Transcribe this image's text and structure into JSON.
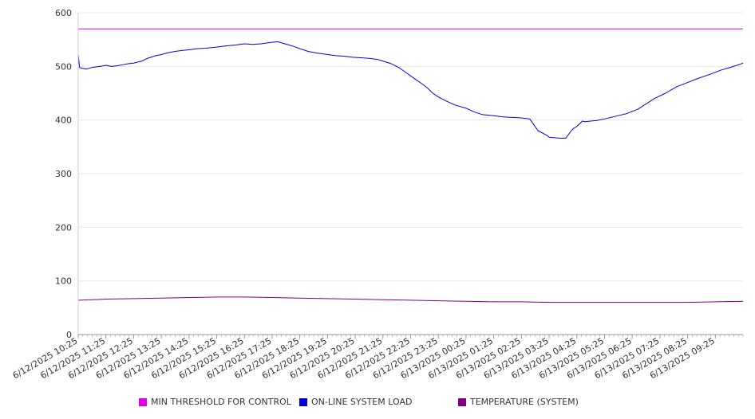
{
  "chart_data": {
    "type": "line",
    "ylim": [
      0,
      600
    ],
    "yticks": [
      0,
      100,
      200,
      300,
      400,
      500,
      600
    ],
    "xlabels": [
      "6/12/2025 10:25",
      "6/12/2025 11:25",
      "6/12/2025 12:25",
      "6/12/2025 13:25",
      "6/12/2025 14:25",
      "6/12/2025 15:25",
      "6/12/2025 16:25",
      "6/12/2025 17:25",
      "6/12/2025 18:25",
      "6/12/2025 19:25",
      "6/12/2025 20:25",
      "6/12/2025 21:25",
      "6/12/2025 22:25",
      "6/12/2025 23:25",
      "6/13/2025 00:25",
      "6/13/2025 01:25",
      "6/13/2025 02:25",
      "6/13/2025 03:25",
      "6/13/2025 04:25",
      "6/13/2025 05:25",
      "6/13/2025 06:25",
      "6/13/2025 07:25",
      "6/13/2025 08:25",
      "6/13/2025 09:25"
    ],
    "grid": true,
    "legend_position": "bottom",
    "series": [
      {
        "name": "MIN THRESHOLD FOR CONTROL",
        "color": "#e000e0",
        "x": [
          0,
          24
        ],
        "y": [
          570,
          570
        ]
      },
      {
        "name": "ON-LINE SYSTEM LOAD",
        "color": "#0000dd",
        "x": [
          0,
          0.05,
          0.1,
          0.3,
          0.5,
          0.8,
          1.0,
          1.2,
          1.4,
          1.5,
          1.6,
          1.8,
          2.0,
          2.3,
          2.5,
          2.8,
          3.0,
          3.2,
          3.5,
          3.8,
          4.0,
          4.3,
          4.6,
          5.0,
          5.3,
          5.7,
          6.0,
          6.3,
          6.6,
          7.0,
          7.2,
          7.4,
          7.6,
          7.8,
          8.0,
          8.3,
          8.6,
          9.0,
          9.3,
          9.6,
          9.9,
          10.2,
          10.5,
          10.8,
          11.0,
          11.3,
          11.6,
          11.9,
          12.2,
          12.4,
          12.6,
          12.8,
          13.0,
          13.3,
          13.6,
          14.0,
          14.3,
          14.6,
          15.0,
          15.3,
          15.6,
          16.0,
          16.3,
          16.6,
          16.9,
          17.0,
          17.2,
          17.4,
          17.6,
          17.8,
          17.9,
          18.0,
          18.2,
          18.3,
          18.5,
          18.7,
          19.0,
          19.4,
          19.8,
          20.2,
          20.5,
          20.8,
          21.2,
          21.6,
          22.0,
          22.4,
          22.8,
          23.2,
          23.6,
          24.0
        ],
        "y": [
          522,
          498,
          497,
          495,
          498,
          500,
          502,
          500,
          501,
          502,
          503,
          505,
          506,
          510,
          515,
          520,
          522,
          525,
          528,
          530,
          531,
          533,
          534,
          536,
          538,
          540,
          542,
          541,
          542,
          545,
          546,
          543,
          540,
          537,
          533,
          528,
          525,
          522,
          520,
          519,
          517,
          516,
          515,
          513,
          510,
          505,
          497,
          486,
          475,
          468,
          460,
          450,
          443,
          435,
          428,
          422,
          415,
          410,
          408,
          406,
          405,
          404,
          402,
          380,
          372,
          368,
          367,
          366,
          366,
          380,
          385,
          388,
          398,
          397,
          398,
          399,
          402,
          407,
          412,
          420,
          430,
          440,
          450,
          462,
          470,
          478,
          485,
          493,
          499,
          506
        ]
      },
      {
        "name": "TEMPERATURE (SYSTEM)",
        "color": "#800080",
        "x": [
          0,
          1,
          2,
          3,
          4,
          5,
          6,
          7,
          8,
          9,
          10,
          11,
          12,
          13,
          14,
          15,
          16,
          17,
          18,
          19,
          20,
          21,
          22,
          23,
          24
        ],
        "y": [
          64,
          66,
          67,
          68,
          69,
          70,
          70,
          69,
          68,
          67,
          66,
          65,
          64,
          63,
          62,
          61,
          61,
          60,
          60,
          60,
          60,
          60,
          60,
          61,
          62
        ]
      }
    ]
  }
}
